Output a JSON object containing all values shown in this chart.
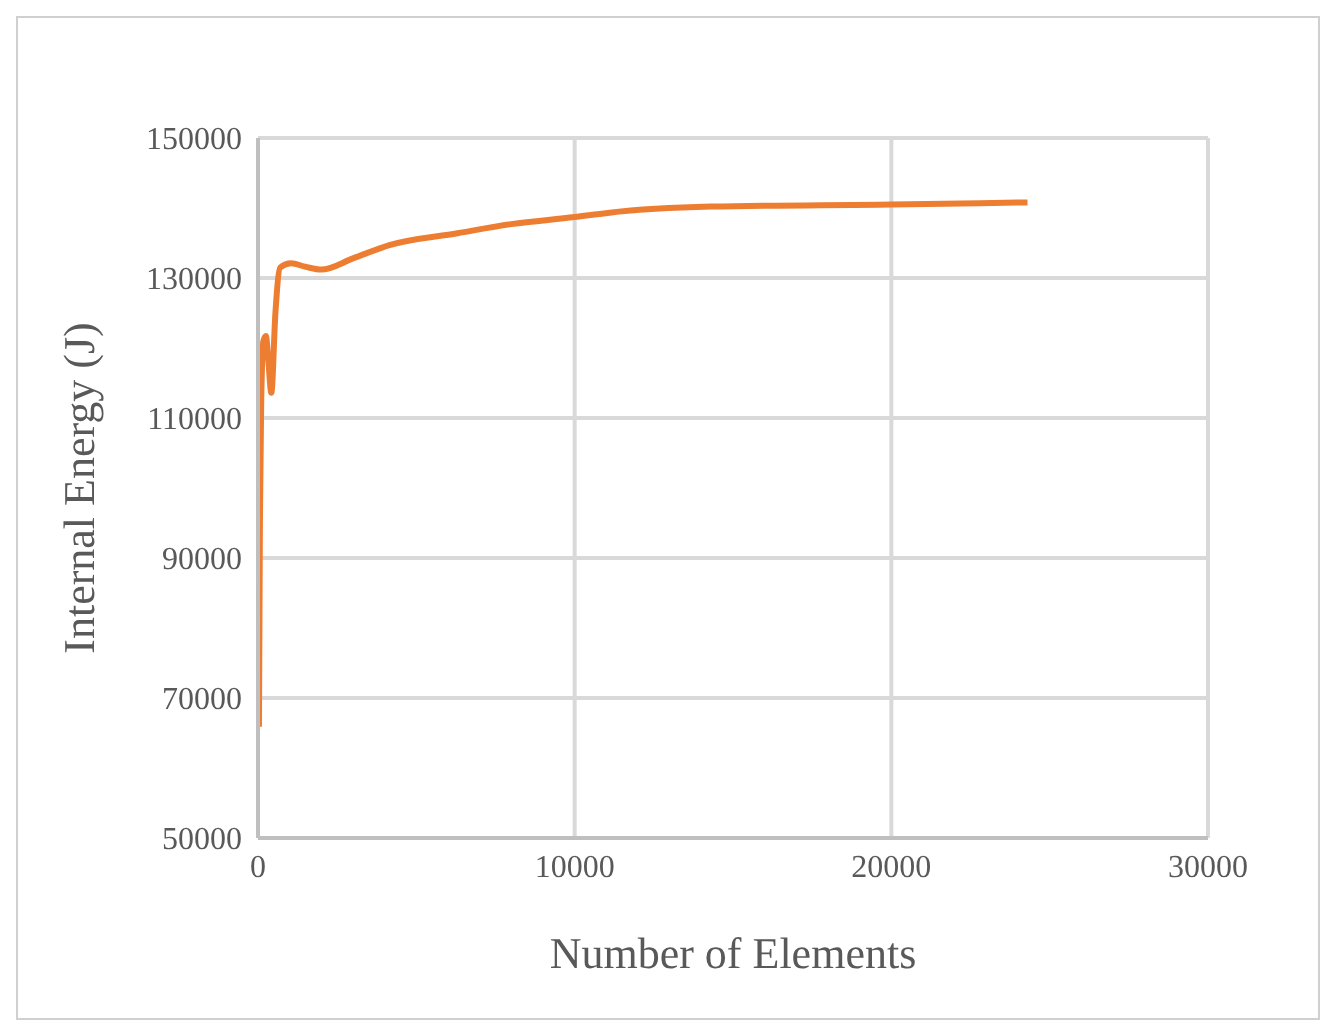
{
  "chart_data": {
    "type": "line",
    "xlabel": "Number of Elements",
    "ylabel": "Internal Energy (J)",
    "series": [
      {
        "color": "#ed7d31",
        "x": [
          30,
          60,
          100,
          170,
          250,
          330,
          420,
          550,
          700,
          1040,
          1500,
          2000,
          3000,
          4150,
          6300,
          8000,
          10000,
          11040,
          14300,
          20000,
          24300
        ],
        "values": [
          65900,
          95000,
          112000,
          121000,
          121700,
          118000,
          113600,
          125000,
          131500,
          132100,
          131600,
          131200,
          132800,
          134700,
          136400,
          137700,
          138700,
          139300,
          140200,
          140500,
          140800
        ]
      }
    ],
    "xlim": [
      0,
      30000
    ],
    "xticks": [
      0,
      10000,
      20000,
      30000
    ],
    "ylim": [
      50000,
      150000
    ],
    "yticks": [
      50000,
      70000,
      90000,
      110000,
      130000,
      150000
    ],
    "grid": true,
    "marker": "none",
    "line_style": "solid",
    "legend": false
  }
}
